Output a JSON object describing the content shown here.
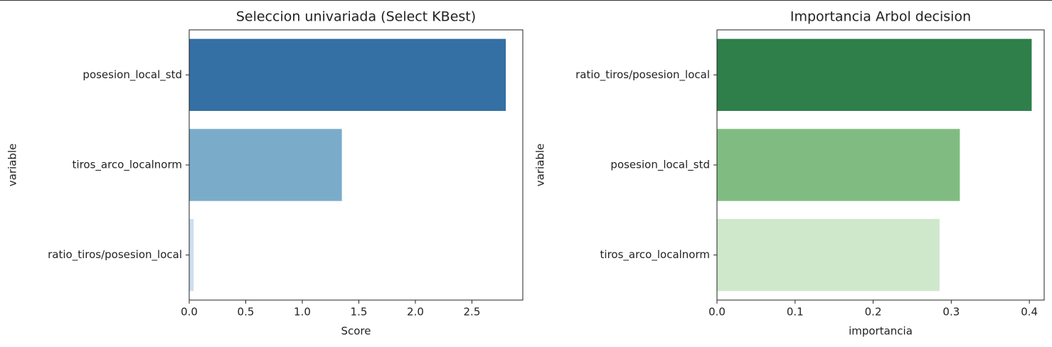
{
  "chart_data": [
    {
      "type": "bar",
      "orientation": "horizontal",
      "title": "Seleccion univariada (Select KBest)",
      "xlabel": "Score",
      "ylabel": "variable",
      "categories": [
        "posesion_local_std",
        "tiros_arco_localnorm",
        "ratio_tiros/posesion_local"
      ],
      "values": [
        2.8,
        1.35,
        0.04
      ],
      "colors": [
        "#3470a3",
        "#7aacca",
        "#cddff0"
      ],
      "xlim": [
        0,
        2.95
      ],
      "xticks": [
        {
          "value": 0,
          "label": "0.0"
        },
        0.5,
        {
          "value": 1,
          "label": "1.0"
        },
        1.5,
        {
          "value": 2,
          "label": "2.0"
        },
        2.5
      ]
    },
    {
      "type": "bar",
      "orientation": "horizontal",
      "title": "Importancia Arbol decision",
      "xlabel": "importancia",
      "ylabel": "variable",
      "categories": [
        "ratio_tiros/posesion_local",
        "posesion_local_std",
        "tiros_arco_localnorm"
      ],
      "values": [
        0.403,
        0.311,
        0.285
      ],
      "colors": [
        "#2f7f4a",
        "#80bc82",
        "#cfe8cc"
      ],
      "xlim": [
        0,
        0.419
      ],
      "xticks": [
        {
          "value": 0,
          "label": "0.0"
        },
        0.1,
        0.2,
        0.3,
        0.4
      ]
    }
  ]
}
